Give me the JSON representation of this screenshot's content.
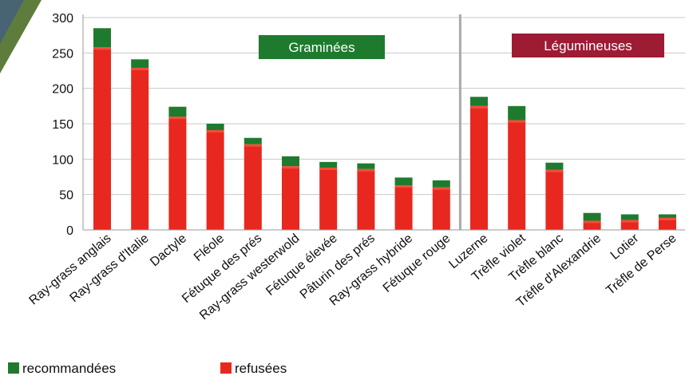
{
  "chart_data": {
    "type": "bar",
    "stacked": true,
    "categories": [
      "Ray-grass anglais",
      "Ray-grass d'Italie",
      "Dactyle",
      "Fléole",
      "Fétuque des prés",
      "Ray-grass westerwold",
      "Fétuque élevée",
      "Pâturin des prés",
      "Ray-grass hybride",
      "Fétuque rouge",
      "Luzerne",
      "Trèfle violet",
      "Trèfle blanc",
      "Trèfle d'Alexandrie",
      "Lotier",
      "Trèfle de Perse"
    ],
    "series": [
      {
        "name": "refusées",
        "color": "#e8281e",
        "values": [
          258,
          229,
          160,
          141,
          121,
          90,
          88,
          86,
          63,
          60,
          175,
          155,
          85,
          13,
          14,
          17
        ]
      },
      {
        "name": "recommandées",
        "color": "#1e7b2e",
        "values": [
          27,
          12,
          14,
          9,
          9,
          14,
          8,
          8,
          11,
          10,
          13,
          20,
          10,
          11,
          8,
          5
        ]
      }
    ],
    "groups": [
      {
        "label": "Graminées",
        "color": "#1e7b2e",
        "first": 0,
        "last": 9
      },
      {
        "label": "Légumineuses",
        "color": "#9e1b34",
        "first": 10,
        "last": 15
      }
    ],
    "ylim": [
      0,
      300
    ],
    "yticks": [
      0,
      50,
      100,
      150,
      200,
      250,
      300
    ],
    "grid": true,
    "legend_position": "bottom-left"
  }
}
